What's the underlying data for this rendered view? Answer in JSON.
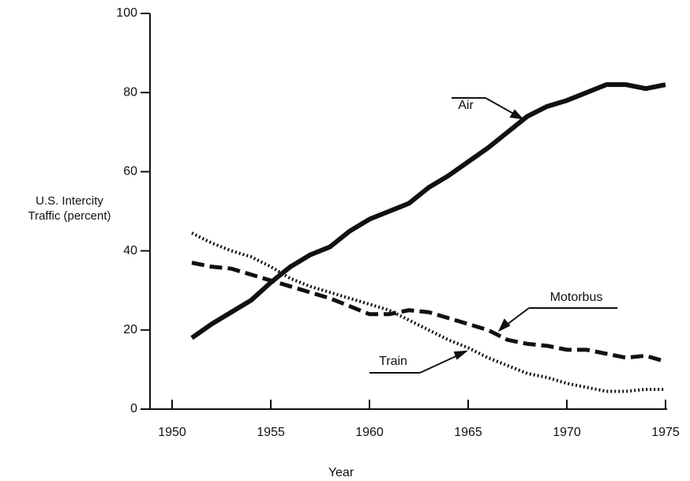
{
  "chart_data": {
    "type": "line",
    "x_label": "Year",
    "y_label": "U.S. Intercity\nTraffic (percent)",
    "x": [
      1951,
      1952,
      1953,
      1954,
      1955,
      1956,
      1957,
      1958,
      1959,
      1960,
      1961,
      1962,
      1963,
      1964,
      1965,
      1966,
      1967,
      1968,
      1969,
      1970,
      1971,
      1972,
      1973,
      1974,
      1975
    ],
    "series": [
      {
        "name": "Air",
        "color": "#111111",
        "style": "solid",
        "values": [
          18,
          21.5,
          24.5,
          27.5,
          32,
          36,
          39,
          41,
          45,
          48,
          50,
          52,
          56,
          59,
          62.5,
          66,
          70,
          74,
          76.5,
          78,
          80,
          82,
          82,
          81,
          82
        ]
      },
      {
        "name": "Motorbus",
        "color": "#111111",
        "style": "dashed",
        "values": [
          37,
          36,
          35.5,
          34,
          32.5,
          31,
          29.5,
          28,
          26,
          24,
          24,
          25,
          24.5,
          23,
          21.5,
          20,
          17.5,
          16.5,
          16,
          15,
          15,
          14,
          13,
          13.5,
          12
        ]
      },
      {
        "name": "Train",
        "color": "#111111",
        "style": "dotted",
        "values": [
          44.5,
          42,
          40,
          38.5,
          36,
          33,
          31,
          29.5,
          28,
          26.5,
          25,
          22.5,
          20,
          17.5,
          15.5,
          13,
          11,
          9,
          8,
          6.5,
          5.5,
          4.5,
          4.5,
          5,
          5
        ]
      }
    ],
    "xlim": [
      1950,
      1975
    ],
    "xticks": [
      1950,
      1955,
      1960,
      1965,
      1970,
      1975
    ],
    "ylim": [
      0,
      100
    ],
    "yticks": [
      0,
      20,
      40,
      60,
      80,
      100
    ],
    "grid": false
  }
}
